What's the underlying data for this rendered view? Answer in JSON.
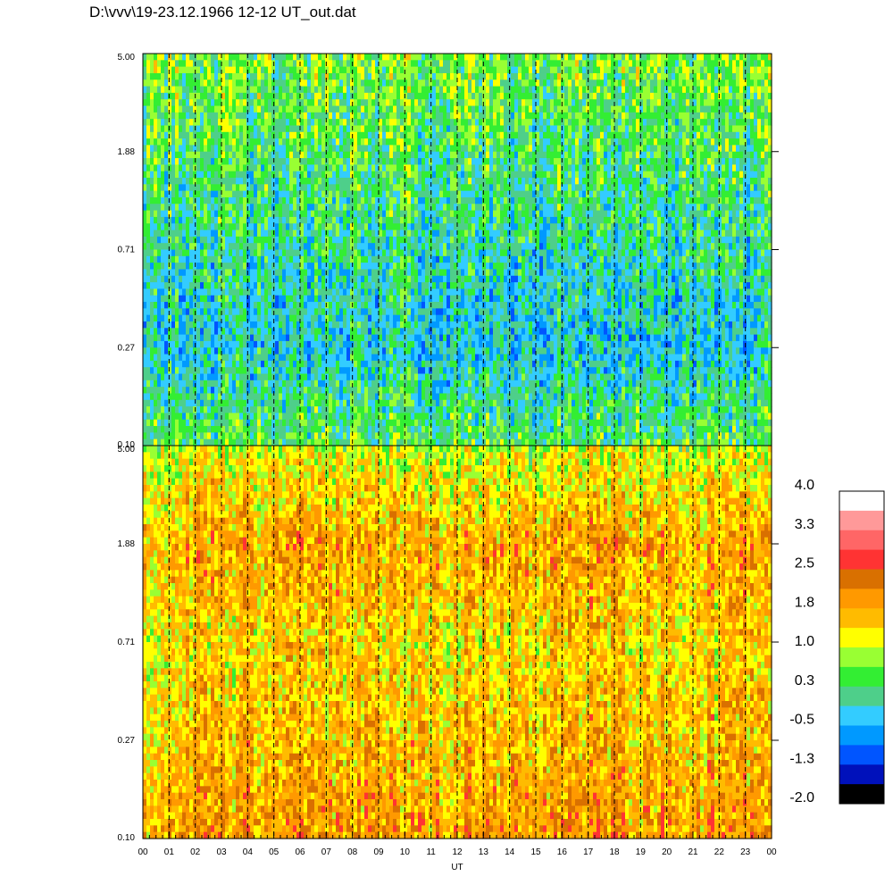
{
  "header": {
    "file_title": "D:\\vvv\\19-23.12.1966  12-12 UT_out.dat"
  },
  "chart_data": [
    {
      "type": "heatmap",
      "panel": "top",
      "x_range": [
        0,
        24
      ],
      "y_ticks": [
        "5.00",
        "1.88",
        "0.71",
        "0.27",
        "0.10"
      ],
      "value_trend": [
        {
          "y": "5.00",
          "level": 0.6
        },
        {
          "y": "1.88",
          "level": 0.3
        },
        {
          "y": "0.71",
          "level": 0.0
        },
        {
          "y": "0.27",
          "level": -0.3
        },
        {
          "y": "0.10",
          "level": 0.4
        }
      ]
    },
    {
      "type": "heatmap",
      "panel": "bottom",
      "x_range": [
        0,
        24
      ],
      "xlabel": "UT",
      "x_ticks": [
        "00",
        "01",
        "02",
        "03",
        "04",
        "05",
        "06",
        "07",
        "08",
        "09",
        "10",
        "11",
        "12",
        "13",
        "14",
        "15",
        "16",
        "17",
        "18",
        "19",
        "20",
        "21",
        "22",
        "23",
        "00"
      ],
      "y_ticks": [
        "5.00",
        "1.88",
        "0.71",
        "0.27",
        "0.10"
      ],
      "value_trend": [
        {
          "y": "5.00",
          "level": 1.0
        },
        {
          "y": "1.88",
          "level": 1.8
        },
        {
          "y": "0.71",
          "level": 1.4
        },
        {
          "y": "0.27",
          "level": 1.6
        },
        {
          "y": "0.10",
          "level": 1.9
        }
      ]
    }
  ],
  "colorbar": {
    "labels": [
      "4.0",
      "3.3",
      "2.5",
      "1.8",
      "1.0",
      "0.3",
      "-0.5",
      "-1.3",
      "-2.0"
    ],
    "colors": [
      "#ffffff",
      "#ff9999",
      "#ff6666",
      "#ff3333",
      "#d97000",
      "#ff9900",
      "#ffbb00",
      "#ffff00",
      "#99ff33",
      "#33ee33",
      "#4ecf8a",
      "#33ccff",
      "#0099ff",
      "#0055ff",
      "#0011bb",
      "#000000"
    ]
  },
  "style": {
    "vline_color": "#000000"
  }
}
